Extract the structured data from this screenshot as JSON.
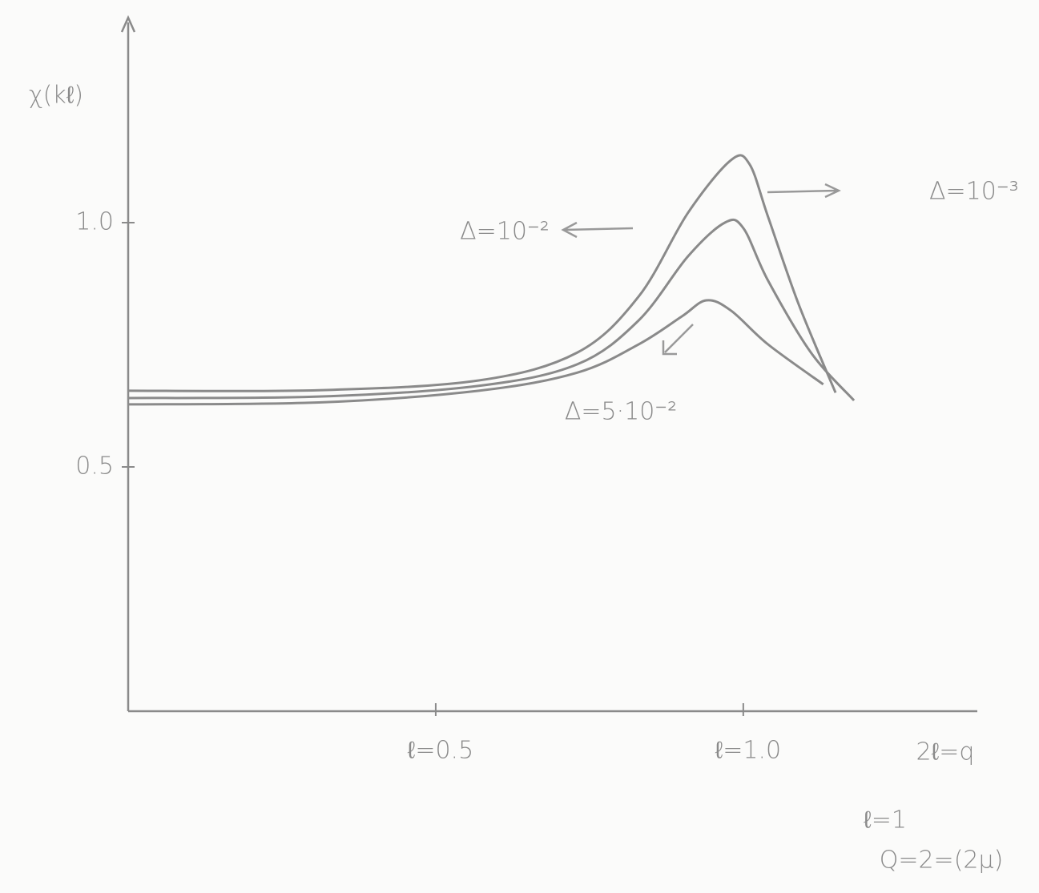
{
  "chart_data": {
    "type": "line",
    "y_label": "χ(kℓ)",
    "xlim": [
      0,
      1.4
    ],
    "ylim": [
      0,
      1.4
    ],
    "xticks": [
      {
        "value": 0.5,
        "label": "ℓ=0.5"
      },
      {
        "value": 1,
        "label": "ℓ=1.0"
      }
    ],
    "yticks": [
      {
        "value": 0.5,
        "label": "0.5"
      },
      {
        "value": 1,
        "label": "1.0"
      }
    ],
    "grid": false,
    "color": "#8a8a8a",
    "series": [
      {
        "name": "Δ=10⁻³",
        "color": "#8a8a8a",
        "x": [
          0,
          0.31,
          0.57,
          0.73,
          0.83,
          0.91,
          0.98,
          1.01,
          1.04,
          1.09,
          1.15
        ],
        "values": [
          0.656,
          0.657,
          0.677,
          0.734,
          0.849,
          1.02,
          1.128,
          1.12,
          1.013,
          0.833,
          0.652
        ]
      },
      {
        "name": "Δ=10⁻²",
        "color": "#8a8a8a",
        "x": [
          0,
          0.31,
          0.57,
          0.73,
          0.83,
          0.91,
          0.97,
          1.0,
          1.04,
          1.11,
          1.18
        ],
        "values": [
          0.641,
          0.644,
          0.666,
          0.71,
          0.8,
          0.931,
          1.0,
          0.989,
          0.882,
          0.734,
          0.636
        ]
      },
      {
        "name": "Δ=5·10⁻²",
        "color": "#8a8a8a",
        "x": [
          0,
          0.31,
          0.57,
          0.73,
          0.83,
          0.9,
          0.94,
          0.98,
          1.04,
          1.13
        ],
        "values": [
          0.628,
          0.632,
          0.656,
          0.693,
          0.751,
          0.808,
          0.841,
          0.82,
          0.751,
          0.669
        ]
      }
    ],
    "notes": [
      "2ℓ=q",
      "ℓ=1",
      "Q=2=(2μ)"
    ]
  }
}
